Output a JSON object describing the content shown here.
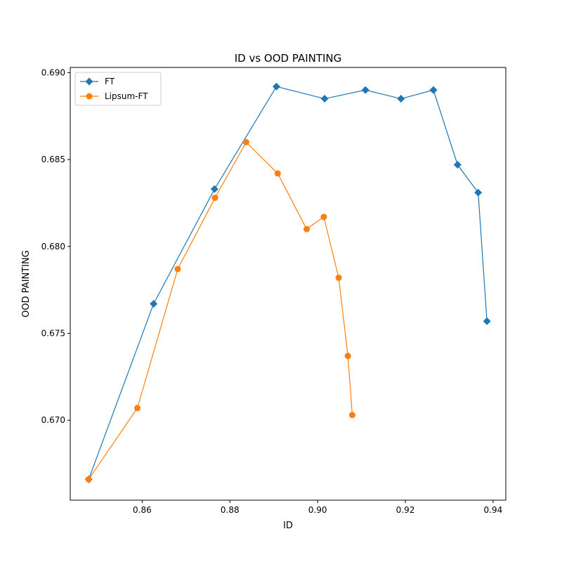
{
  "chart_data": {
    "type": "line",
    "title": "ID vs OOD PAINTING",
    "xlabel": "ID",
    "ylabel": "OOD PAINTING",
    "xlim": [
      0.8436,
      0.9429
    ],
    "ylim": [
      0.6654,
      0.6903
    ],
    "xticks": [
      "0.86",
      "0.88",
      "0.90",
      "0.92",
      "0.94"
    ],
    "yticks": [
      "0.670",
      "0.675",
      "0.680",
      "0.685",
      "0.690"
    ],
    "grid": false,
    "legend_position": "top-left",
    "series": [
      {
        "name": "FT",
        "color": "#1f77b4",
        "marker": "diamond",
        "x": [
          0.8478,
          0.8626,
          0.8765,
          0.8906,
          0.9016,
          0.9109,
          0.919,
          0.9264,
          0.9319,
          0.9366,
          0.9386
        ],
        "y": [
          0.6666,
          0.6767,
          0.6833,
          0.6892,
          0.6885,
          0.689,
          0.6885,
          0.689,
          0.6847,
          0.6831,
          0.6757
        ]
      },
      {
        "name": "Lipsum-FT",
        "color": "#ff7f0e",
        "marker": "circle",
        "x": [
          0.8478,
          0.8589,
          0.8681,
          0.8766,
          0.8837,
          0.8909,
          0.8975,
          0.9014,
          0.9048,
          0.9069,
          0.9079
        ],
        "y": [
          0.6666,
          0.6707,
          0.6787,
          0.6828,
          0.686,
          0.6842,
          0.681,
          0.6817,
          0.6782,
          0.6737,
          0.6703
        ]
      }
    ]
  }
}
